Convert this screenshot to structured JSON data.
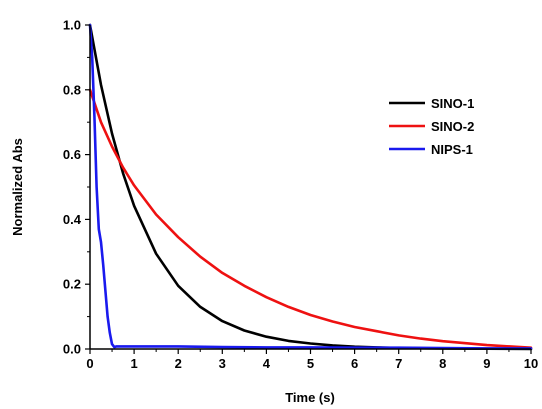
{
  "chart_data": {
    "type": "line",
    "title": "",
    "xlabel": "Time (s)",
    "ylabel": "Normalized Abs",
    "xlim": [
      0,
      10
    ],
    "ylim": [
      0,
      1.0
    ],
    "x_ticks": [
      "0",
      "1",
      "2",
      "3",
      "4",
      "5",
      "6",
      "7",
      "8",
      "9",
      "10"
    ],
    "y_ticks": [
      "0.0",
      "0.2",
      "0.4",
      "0.6",
      "0.8",
      "1.0"
    ],
    "grid": false,
    "legend_position": "top-right",
    "series": [
      {
        "name": "SINO-1",
        "color": "#000000",
        "x": [
          0,
          0.25,
          0.5,
          0.75,
          1,
          1.5,
          2,
          2.5,
          3,
          3.5,
          4,
          4.5,
          5,
          5.5,
          6,
          6.5,
          7,
          8,
          9,
          10
        ],
        "y": [
          1.0,
          0.815,
          0.665,
          0.542,
          0.442,
          0.294,
          0.195,
          0.13,
          0.086,
          0.057,
          0.038,
          0.025,
          0.017,
          0.011,
          0.007,
          0.005,
          0.003,
          0.002,
          0.001,
          0.0
        ]
      },
      {
        "name": "SINO-2",
        "color": "#ee1111",
        "x": [
          0,
          0.25,
          0.5,
          0.75,
          1,
          1.5,
          2,
          2.5,
          3,
          3.5,
          4,
          4.5,
          5,
          5.5,
          6,
          6.5,
          7,
          7.5,
          8,
          9,
          10
        ],
        "y": [
          0.8,
          0.7,
          0.625,
          0.56,
          0.505,
          0.415,
          0.345,
          0.285,
          0.235,
          0.195,
          0.16,
          0.13,
          0.105,
          0.085,
          0.068,
          0.055,
          0.042,
          0.032,
          0.024,
          0.012,
          0.004
        ]
      },
      {
        "name": "NIPS-1",
        "color": "#1a1aee",
        "x": [
          0,
          0.05,
          0.1,
          0.15,
          0.2,
          0.25,
          0.3,
          0.35,
          0.4,
          0.45,
          0.5,
          0.55,
          0.6,
          0.8,
          1,
          1.5,
          2,
          3,
          4,
          5,
          6,
          7,
          8,
          9,
          10
        ],
        "y": [
          1.0,
          0.9,
          0.72,
          0.5,
          0.37,
          0.33,
          0.26,
          0.18,
          0.1,
          0.05,
          0.015,
          0.006,
          0.008,
          0.008,
          0.008,
          0.008,
          0.008,
          0.006,
          0.005,
          0.005,
          0.004,
          0.004,
          0.003,
          0.002,
          0.002
        ]
      }
    ]
  }
}
